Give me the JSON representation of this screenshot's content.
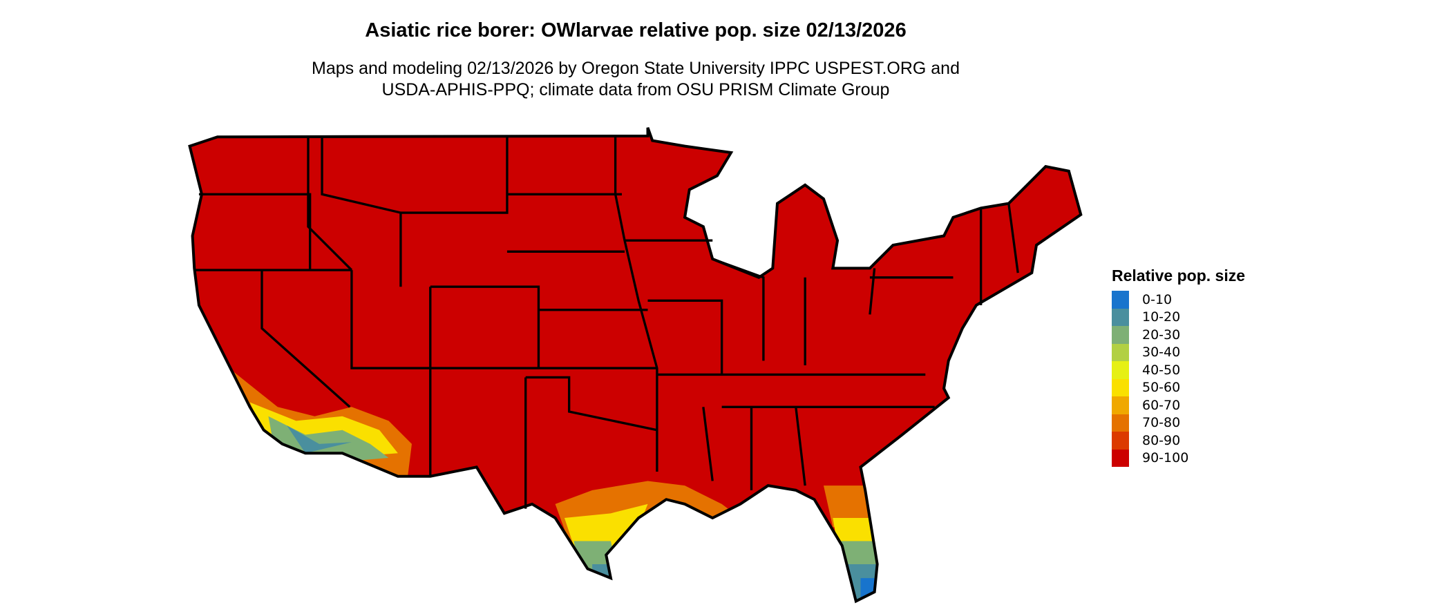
{
  "title": "Asiatic rice borer: OWlarvae relative pop. size 02/13/2026",
  "subtitle_lines": [
    "Maps and modeling 02/13/2026 by Oregon State University IPPC USPEST.ORG and",
    "USDA-APHIS-PPQ; climate data from OSU PRISM Climate Group"
  ],
  "legend": {
    "title": "Relative pop. size",
    "items": [
      {
        "label": "0-10",
        "color": "#1874CD"
      },
      {
        "label": "10-20",
        "color": "#4A8F9E"
      },
      {
        "label": "20-30",
        "color": "#7EB075"
      },
      {
        "label": "30-40",
        "color": "#B2D043"
      },
      {
        "label": "40-50",
        "color": "#E6F014"
      },
      {
        "label": "50-60",
        "color": "#FAE000"
      },
      {
        "label": "60-70",
        "color": "#F0A800"
      },
      {
        "label": "70-80",
        "color": "#E57200"
      },
      {
        "label": "80-90",
        "color": "#DC3A00"
      },
      {
        "label": "90-100",
        "color": "#CC0000"
      }
    ]
  },
  "map": {
    "region": "Contiguous United States",
    "dominant_class": "90-100",
    "border_color": "#000000"
  }
}
